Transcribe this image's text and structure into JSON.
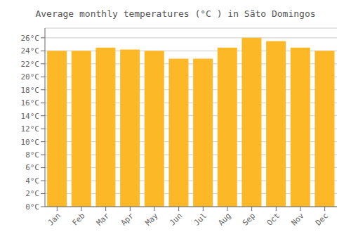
{
  "chart_data": {
    "type": "bar",
    "title": "Average monthly temperatures (°C ) in Sãto Domingos",
    "categories": [
      "Jan",
      "Feb",
      "Mar",
      "Apr",
      "May",
      "Jun",
      "Jul",
      "Aug",
      "Sep",
      "Oct",
      "Nov",
      "Dec"
    ],
    "values": [
      24.0,
      24.0,
      24.5,
      24.2,
      24.0,
      22.8,
      22.8,
      24.5,
      26.0,
      25.5,
      24.5,
      24.0
    ],
    "color": "#FDB827",
    "ylim": [
      0,
      27.5
    ],
    "yticks": [
      {
        "value": 0,
        "label": "0°C"
      },
      {
        "value": 2,
        "label": "2°C"
      },
      {
        "value": 4,
        "label": "4°C"
      },
      {
        "value": 6,
        "label": "6°C"
      },
      {
        "value": 8,
        "label": "8°C"
      },
      {
        "value": 10,
        "label": "10°C"
      },
      {
        "value": 12,
        "label": "12°C"
      },
      {
        "value": 14,
        "label": "14°C"
      },
      {
        "value": 16,
        "label": "16°C"
      },
      {
        "value": 18,
        "label": "18°C"
      },
      {
        "value": 20,
        "label": "20°C"
      },
      {
        "value": 22,
        "label": "22°C"
      },
      {
        "value": 24,
        "label": "24°C"
      },
      {
        "value": 26,
        "label": "26°C"
      }
    ],
    "grid": true
  }
}
